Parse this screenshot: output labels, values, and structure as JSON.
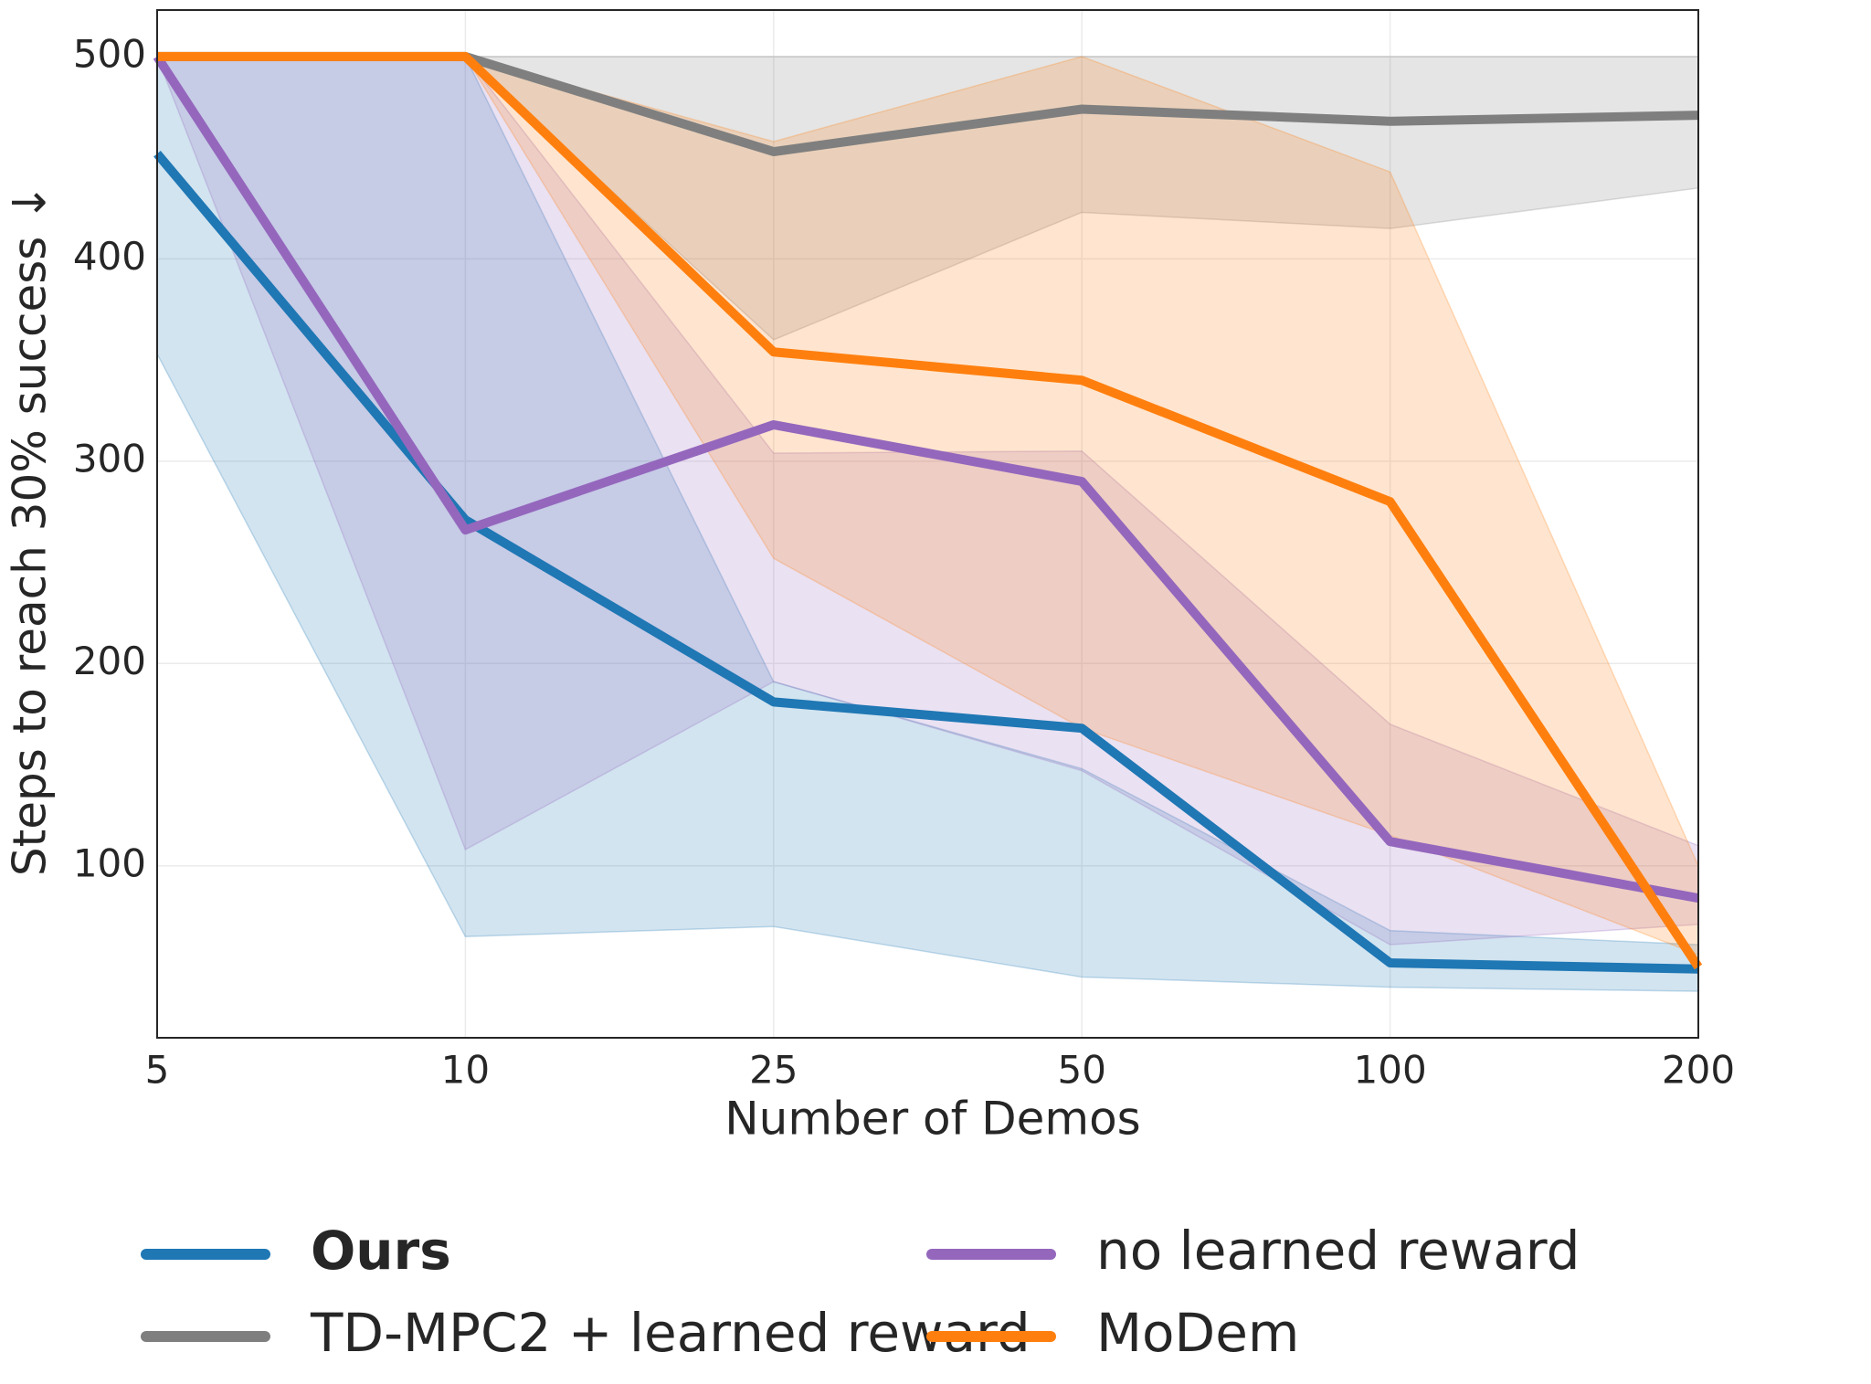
{
  "chart_data": {
    "type": "line",
    "xlabel": "Number of Demos",
    "ylabel": "Steps to reach 30% success ↓",
    "categories": [
      "5",
      "10",
      "25",
      "50",
      "100",
      "200"
    ],
    "ylim": [
      15,
      523
    ],
    "yticks": [
      100,
      200,
      300,
      400,
      500
    ],
    "grid": true,
    "series": [
      {
        "name": "Ours",
        "color": "#1f77b4",
        "values": [
          452,
          271,
          181,
          168,
          52,
          49
        ],
        "lower": [
          353,
          65,
          70,
          45,
          40,
          38
        ],
        "upper": [
          500,
          500,
          191,
          148,
          68,
          61
        ]
      },
      {
        "name": "TD-MPC2 + learned reward",
        "color": "#7f7f7f",
        "values": [
          500,
          500,
          453,
          474,
          468,
          471
        ],
        "lower": [
          500,
          500,
          360,
          423,
          415,
          435
        ],
        "upper": [
          500,
          500,
          500,
          500,
          500,
          500
        ]
      },
      {
        "name": "no learned reward",
        "color": "#9467bd",
        "values": [
          500,
          266,
          318,
          290,
          112,
          84
        ],
        "lower": [
          500,
          108,
          191,
          147,
          61,
          71
        ],
        "upper": [
          500,
          500,
          304,
          305,
          170,
          110
        ]
      },
      {
        "name": "MoDem",
        "color": "#ff7f0e",
        "values": [
          500,
          500,
          354,
          340,
          280,
          50
        ],
        "lower": [
          500,
          500,
          252,
          168,
          115,
          56
        ],
        "upper": [
          500,
          500,
          458,
          500,
          443,
          100
        ]
      }
    ]
  }
}
